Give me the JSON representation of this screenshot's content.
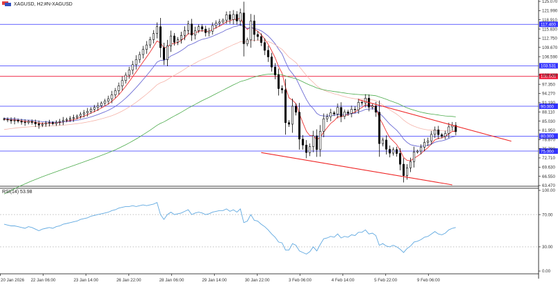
{
  "header": {
    "symbol_text": "XAGUSD, H2:",
    "name_text": "#N-XAGUSD"
  },
  "rsi_label": "RSI(14) 53.98",
  "chart_data": {
    "type": "candlestick",
    "price_axis": {
      "ylim": [
        63.47,
        125.07
      ],
      "tick_labels": [
        "125.070",
        "121.990",
        "118.910",
        "115.830",
        "112.750",
        "109.670",
        "106.590",
        "100.430",
        "97.350",
        "94.270",
        "91.190",
        "88.110",
        "85.030",
        "81.950",
        "78.870",
        "75.790",
        "72.710",
        "69.630",
        "66.550",
        "63.470"
      ]
    },
    "rsi_axis": {
      "ylim": [
        0,
        100
      ],
      "tick_labels": [
        "100.00",
        "70.00",
        "30.00",
        "0.00"
      ],
      "levels": [
        70,
        30
      ]
    },
    "time_labels": [
      "20 Jan 2026",
      "22 Jan 06:00",
      "23 Jan 14:00",
      "26 Jan 22:00",
      "28 Jan 06:00",
      "29 Jan 14:00",
      "30 Jan 22:00",
      "3 Feb 06:00",
      "4 Feb 14:00",
      "5 Feb 22:00",
      "9 Feb 06:00"
    ],
    "horizontal_levels": [
      {
        "value": 117.4,
        "label": "117.400",
        "color": "#3333ff"
      },
      {
        "value": 103.531,
        "label": "103.531",
        "color": "#3333ff"
      },
      {
        "value": 100.0,
        "label": "100.000",
        "color": "#ee1133"
      },
      {
        "value": 90.0,
        "label": "90.000",
        "color": "#3333ff"
      },
      {
        "value": 80.0,
        "label": "80.000",
        "color": "#3333ff"
      },
      {
        "value": 75.0,
        "label": "75.000",
        "color": "#3333ff"
      }
    ],
    "trendlines": [
      {
        "x1": 102,
        "y1": 92.2,
        "x2": 146,
        "y2": 78.3,
        "color": "#ee2222"
      },
      {
        "x1": 74,
        "y1": 74.5,
        "x2": 129,
        "y2": 63.7,
        "color": "#ee2222"
      }
    ],
    "ma_colors": {
      "fast": "#ee3333",
      "mid": "#6a6ad4",
      "slow": "#f5b2a8",
      "long": "#4aaa4a"
    },
    "rsi_color": "#5fa8e0",
    "candle_color": "#000000",
    "closes": [
      85.6,
      85.4,
      85.1,
      85.3,
      85.0,
      84.7,
      84.5,
      84.9,
      84.6,
      84.1,
      83.7,
      84.0,
      84.3,
      84.5,
      84.2,
      84.6,
      84.9,
      85.3,
      85.6,
      85.9,
      86.2,
      86.7,
      87.3,
      87.8,
      88.3,
      89.0,
      89.6,
      90.2,
      91.0,
      91.7,
      92.5,
      93.8,
      95.2,
      96.8,
      98.6,
      100.4,
      102.1,
      103.9,
      105.6,
      107.3,
      109.0,
      110.5,
      112.3,
      114.3,
      116.6,
      109.6,
      105.6,
      110.2,
      113.5,
      111.4,
      112.3,
      113.7,
      115.3,
      117.5,
      113.8,
      115.3,
      116.6,
      115.8,
      114.6,
      115.1,
      117.0,
      117.8,
      118.2,
      118.8,
      120.6,
      119.0,
      120.7,
      118.5,
      121.2,
      110.9,
      112.2,
      118.5,
      114.0,
      113.3,
      111.3,
      108.7,
      106.5,
      103.1,
      100.5,
      95.9,
      95.5,
      84.5,
      84.0,
      90.0,
      88.0,
      79.0,
      77.0,
      74.5,
      76.5,
      80.1,
      75.5,
      81.6,
      85.8,
      86.5,
      87.8,
      87.4,
      89.6,
      86.6,
      88.1,
      87.6,
      89.0,
      88.8,
      91.3,
      91.1,
      92.7,
      89.7,
      90.1,
      88.0,
      77.5,
      78.7,
      75.6,
      74.3,
      75.5,
      74.2,
      70.6,
      66.8,
      69.4,
      71.5,
      74.7,
      75.0,
      76.3,
      77.9,
      78.4,
      80.6,
      82.1,
      80.5,
      79.9,
      80.9,
      83.1,
      83.6,
      81.5
    ],
    "rsi_values": [
      58,
      57,
      56,
      56,
      55,
      54,
      53,
      55,
      54,
      52,
      50,
      52,
      53,
      54,
      53,
      55,
      56,
      58,
      59,
      60,
      61,
      62,
      64,
      65,
      66,
      68,
      69,
      70,
      71,
      72,
      73,
      75,
      76,
      78,
      79,
      80,
      80,
      81,
      80,
      81,
      82,
      81,
      82,
      83,
      85,
      70,
      64,
      70,
      73,
      70,
      71,
      72,
      74,
      76,
      70,
      72,
      73,
      72,
      70,
      71,
      73,
      74,
      75,
      75,
      77,
      74,
      76,
      73,
      77,
      60,
      62,
      70,
      63,
      62,
      58,
      55,
      51,
      46,
      42,
      36,
      35,
      26,
      26,
      34,
      32,
      25,
      23,
      21,
      24,
      30,
      25,
      33,
      40,
      41,
      43,
      42,
      46,
      41,
      43,
      42,
      45,
      44,
      48,
      48,
      51,
      46,
      47,
      44,
      32,
      34,
      31,
      30,
      32,
      30,
      27,
      23,
      28,
      31,
      36,
      37,
      39,
      42,
      43,
      46,
      49,
      46,
      45,
      47,
      51,
      53,
      54
    ]
  }
}
